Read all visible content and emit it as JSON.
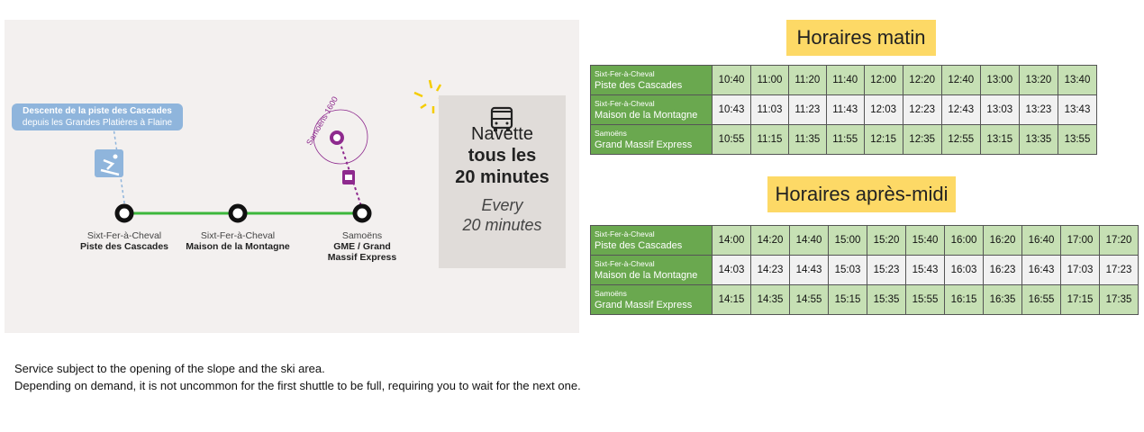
{
  "map": {
    "callout": {
      "line1": "Descente de la piste des Cascades",
      "line2": "depuis les Grandes Platières à Flaine"
    },
    "samoens_1600": "Samoëns 1600",
    "stops": [
      {
        "town": "Sixt-Fer-à-Cheval",
        "name": "Piste des Cascades"
      },
      {
        "town": "Sixt-Fer-à-Cheval",
        "name": "Maison de la Montagne"
      },
      {
        "town": "Samoëns",
        "name": "GME / Grand",
        "name2": "Massif Express"
      }
    ],
    "navette": {
      "line1": "Navette",
      "line2": "tous les",
      "line3": "20 minutes",
      "line4": "Every",
      "line5": "20 minutes"
    },
    "colors": {
      "line": "#3cb73c",
      "callout": "#8fb5dc",
      "gondola": "#8e2a8e"
    },
    "icons": [
      "skier-icon",
      "gondola-icon",
      "bus-icon"
    ]
  },
  "morning": {
    "title": "Horaires matin",
    "rows": [
      {
        "town": "Sixt-Fer-à-Cheval",
        "stop": "Piste des Cascades",
        "times": [
          "10:40",
          "11:00",
          "11:20",
          "11:40",
          "12:00",
          "12:20",
          "12:40",
          "13:00",
          "13:20",
          "13:40"
        ]
      },
      {
        "town": "Sixt-Fer-à-Cheval",
        "stop": "Maison de la Montagne",
        "times": [
          "10:43",
          "11:03",
          "11:23",
          "11:43",
          "12:03",
          "12:23",
          "12:43",
          "13:03",
          "13:23",
          "13:43"
        ]
      },
      {
        "town": "Samoëns",
        "stop": "Grand Massif Express",
        "times": [
          "10:55",
          "11:15",
          "11:35",
          "11:55",
          "12:15",
          "12:35",
          "12:55",
          "13:15",
          "13:35",
          "13:55"
        ]
      }
    ]
  },
  "afternoon": {
    "title": "Horaires après-midi",
    "rows": [
      {
        "town": "Sixt-Fer-à-Cheval",
        "stop": "Piste des Cascades",
        "times": [
          "14:00",
          "14:20",
          "14:40",
          "15:00",
          "15:20",
          "15:40",
          "16:00",
          "16:20",
          "16:40",
          "17:00",
          "17:20"
        ]
      },
      {
        "town": "Sixt-Fer-à-Cheval",
        "stop": "Maison de la Montagne",
        "times": [
          "14:03",
          "14:23",
          "14:43",
          "15:03",
          "15:23",
          "15:43",
          "16:03",
          "16:23",
          "16:43",
          "17:03",
          "17:23"
        ]
      },
      {
        "town": "Samoëns",
        "stop": "Grand Massif Express",
        "times": [
          "14:15",
          "14:35",
          "14:55",
          "15:15",
          "15:35",
          "15:55",
          "16:15",
          "16:35",
          "16:55",
          "17:15",
          "17:35"
        ]
      }
    ]
  },
  "notes": [
    "Service subject to the opening of the slope and the ski area.",
    "Depending on demand, it is not uncommon for the first shuttle to be full, requiring you to wait for the next one."
  ]
}
